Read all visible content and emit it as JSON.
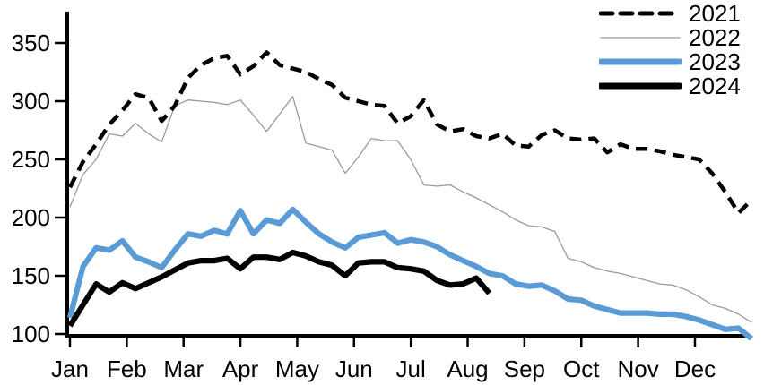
{
  "chart_data": {
    "type": "line",
    "title": "",
    "xlabel": "",
    "ylabel": "",
    "grid": false,
    "legend_position": "top-right",
    "x_axis": {
      "months": [
        "Jan",
        "Feb",
        "Mar",
        "Apr",
        "May",
        "Jun",
        "Jul",
        "Aug",
        "Sep",
        "Oct",
        "Nov",
        "Dec"
      ]
    },
    "y_axis": {
      "min": 100,
      "max": 350,
      "tick_step": 50,
      "ticks": [
        100,
        150,
        200,
        250,
        300,
        350
      ]
    },
    "colors": {
      "black": "#000000",
      "gray": "#9a9a9a",
      "blue": "#5b9bd5"
    },
    "series": [
      {
        "name": "2021",
        "color": "#000000",
        "style": "dashed",
        "values": [
          226,
          248,
          263,
          280,
          292,
          306,
          303,
          283,
          296,
          320,
          331,
          337,
          339,
          323,
          330,
          342,
          331,
          328,
          325,
          319,
          314,
          303,
          300,
          297,
          296,
          281,
          287,
          301,
          280,
          274,
          276,
          270,
          268,
          272,
          262,
          261,
          271,
          275,
          268,
          267,
          268,
          256,
          263,
          259,
          259,
          257,
          254,
          252,
          250,
          238,
          222,
          204,
          215
        ]
      },
      {
        "name": "2022",
        "color": "#9a9a9a",
        "style": "thin",
        "values": [
          209,
          237,
          250,
          272,
          270,
          281,
          272,
          265,
          296,
          301,
          300,
          299,
          297,
          301,
          288,
          274,
          289,
          304,
          264,
          261,
          258,
          238,
          252,
          268,
          266,
          266,
          250,
          228,
          227,
          228,
          222,
          217,
          211,
          205,
          198,
          193,
          192,
          188,
          165,
          162,
          157,
          154,
          152,
          149,
          146,
          143,
          142,
          138,
          132,
          125,
          122,
          117,
          110
        ]
      },
      {
        "name": "2023",
        "color": "#5b9bd5",
        "style": "thick",
        "values": [
          114,
          158,
          174,
          172,
          180,
          166,
          162,
          157,
          172,
          186,
          184,
          189,
          186,
          206,
          186,
          198,
          195,
          207,
          196,
          186,
          179,
          174,
          183,
          185,
          187,
          178,
          181,
          179,
          175,
          168,
          163,
          158,
          152,
          150,
          143,
          141,
          142,
          137,
          130,
          129,
          124,
          121,
          118,
          118,
          118,
          117,
          117,
          115,
          112,
          108,
          104,
          105,
          96
        ]
      },
      {
        "name": "2024",
        "color": "#000000",
        "style": "thick",
        "values": [
          107,
          125,
          143,
          136,
          144,
          139,
          144,
          149,
          155,
          161,
          163,
          163,
          165,
          156,
          166,
          166,
          164,
          170,
          167,
          162,
          159,
          150,
          161,
          162,
          162,
          157,
          156,
          154,
          146,
          142,
          143,
          148,
          135
        ]
      }
    ]
  }
}
